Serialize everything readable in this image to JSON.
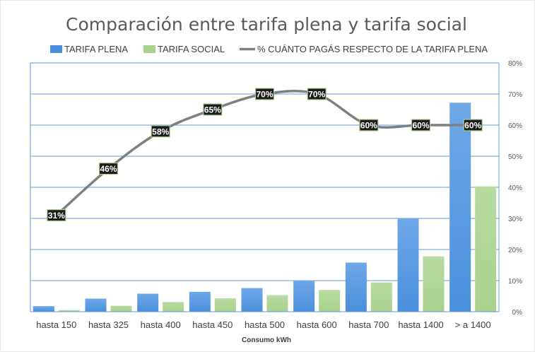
{
  "chart_data": {
    "type": "bar",
    "title": "Comparación entre tarifa plena y tarifa social",
    "xlabel": "Consumo kWh",
    "ylabel": "",
    "categories": [
      "hasta 150",
      "hasta 325",
      "hasta 400",
      "hasta 450",
      "hasta 500",
      "hasta 600",
      "hasta 700",
      "hasta 1400",
      "> a 1400"
    ],
    "series": [
      {
        "name": "TARIFA PLENA",
        "type": "bar",
        "values": [
          1.8,
          4.2,
          5.8,
          6.4,
          7.6,
          10.1,
          15.8,
          30.0,
          67.2
        ],
        "color": "#4a8fdc"
      },
      {
        "name": "TARIFA SOCIAL",
        "type": "bar",
        "values": [
          0.5,
          1.9,
          3.1,
          4.3,
          5.3,
          7.0,
          9.4,
          17.8,
          40.3
        ],
        "color": "#a9d18e"
      },
      {
        "name": "% CUÁNTO PAGÁS RESPECTO DE LA TARIFA PLENA",
        "type": "line",
        "axis": "right",
        "values": [
          31,
          46,
          58,
          65,
          70,
          70,
          60,
          60,
          60
        ],
        "data_labels": [
          "31%",
          "46%",
          "58%",
          "65%",
          "70%",
          "70%",
          "60%",
          "60%",
          "60%"
        ],
        "color": "#7f7f7f"
      }
    ],
    "y2": {
      "ylim": [
        0,
        80
      ],
      "ticks": [
        0,
        10,
        20,
        30,
        40,
        50,
        60,
        70,
        80
      ],
      "tick_labels": [
        "0%",
        "10%",
        "20%",
        "30%",
        "40%",
        "50%",
        "60%",
        "70%",
        "80%"
      ]
    },
    "grid": true,
    "legend": "top"
  }
}
